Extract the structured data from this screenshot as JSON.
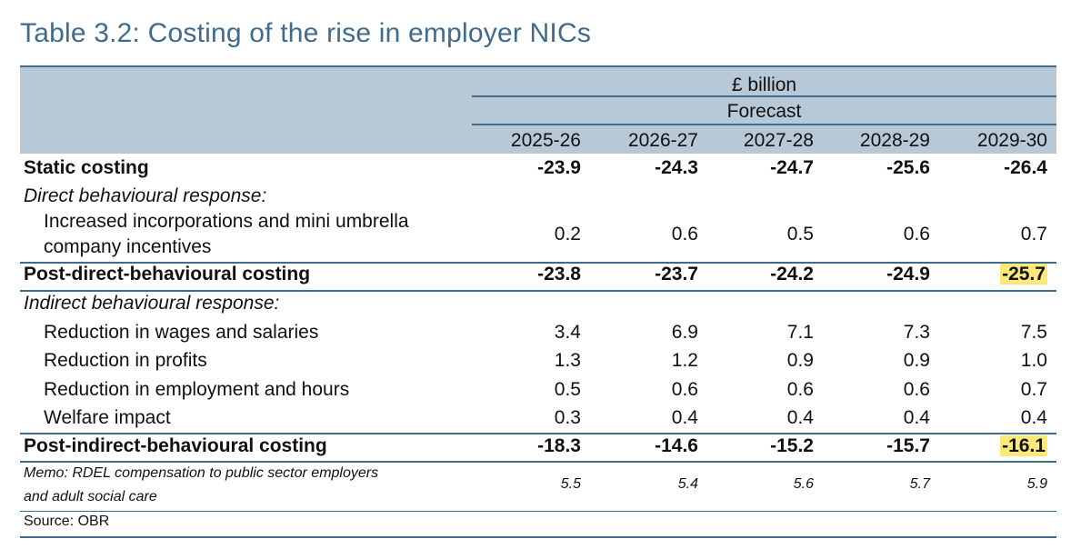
{
  "title": "Table 3.2: Costing of the rise in employer NICs",
  "header": {
    "unit": "£ billion",
    "forecast": "Forecast",
    "years": [
      "2025-26",
      "2026-27",
      "2027-28",
      "2028-29",
      "2029-30"
    ]
  },
  "rows": [
    {
      "label": "Static costing",
      "values": [
        "-23.9",
        "-24.3",
        "-24.7",
        "-25.6",
        "-26.4"
      ]
    },
    {
      "label": "Direct behavioural response:"
    },
    {
      "label_line1": "Increased incorporations and mini umbrella",
      "label_line2": "company incentives",
      "values": [
        "0.2",
        "0.6",
        "0.5",
        "0.6",
        "0.7"
      ]
    },
    {
      "label": "Post-direct-behavioural costing",
      "values": [
        "-23.8",
        "-23.7",
        "-24.2",
        "-24.9",
        "-25.7"
      ]
    },
    {
      "label": "Indirect behavioural response:"
    },
    {
      "label": "Reduction in wages and salaries",
      "values": [
        "3.4",
        "6.9",
        "7.1",
        "7.3",
        "7.5"
      ]
    },
    {
      "label": "Reduction in profits",
      "values": [
        "1.3",
        "1.2",
        "0.9",
        "0.9",
        "1.0"
      ]
    },
    {
      "label": "Reduction in employment and hours",
      "values": [
        "0.5",
        "0.6",
        "0.6",
        "0.6",
        "0.7"
      ]
    },
    {
      "label": "Welfare impact",
      "values": [
        "0.3",
        "0.4",
        "0.4",
        "0.4",
        "0.4"
      ]
    },
    {
      "label": "Post-indirect-behavioural costing",
      "values": [
        "-18.3",
        "-14.6",
        "-15.2",
        "-15.7",
        "-16.1"
      ]
    },
    {
      "label_line1": "Memo: RDEL compensation to public sector employers",
      "label_line2": "and adult social care",
      "values": [
        "5.5",
        "5.4",
        "5.6",
        "5.7",
        "5.9"
      ]
    }
  ],
  "source": "Source: OBR",
  "colors": {
    "accent": "#3f6b8e",
    "header_bg": "#b7c9d6",
    "highlight": "#fde97a"
  }
}
